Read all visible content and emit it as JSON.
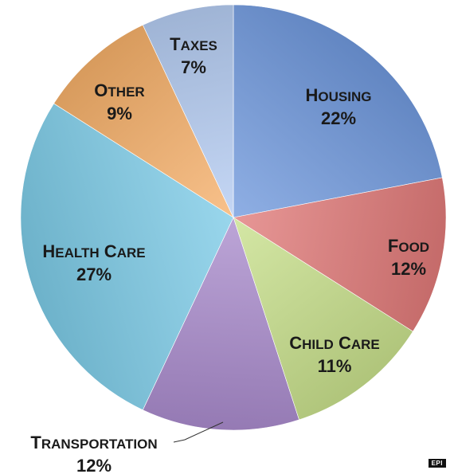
{
  "chart_data": {
    "type": "pie",
    "slices": [
      {
        "label": "Housing",
        "value": 22,
        "value_label": "22%",
        "color": "#6f98dc"
      },
      {
        "label": "Food",
        "value": 12,
        "value_label": "12%",
        "color": "#e07a78"
      },
      {
        "label": "Child Care",
        "value": 11,
        "value_label": "11%",
        "color": "#c8e08c"
      },
      {
        "label": "Transportation",
        "value": 12,
        "value_label": "12%",
        "color": "#a98bcc"
      },
      {
        "label": "Health Care",
        "value": 27,
        "value_label": "27%",
        "color": "#7ccae6"
      },
      {
        "label": "Other",
        "value": 9,
        "value_label": "9%",
        "color": "#f6b06a"
      },
      {
        "label": "Taxes",
        "value": 7,
        "value_label": "7%",
        "color": "#b5ccf2"
      }
    ]
  },
  "source": "EPI"
}
